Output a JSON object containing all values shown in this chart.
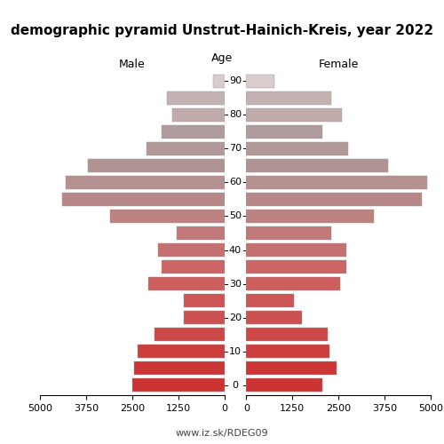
{
  "title": "demographic pyramid Unstrut-Hainich-Kreis, year 2022",
  "watermark": "www.iz.sk/RDEG09",
  "ages": [
    0,
    5,
    10,
    15,
    20,
    25,
    30,
    35,
    40,
    45,
    50,
    55,
    60,
    65,
    70,
    75,
    80,
    85,
    90
  ],
  "male": [
    2500,
    2450,
    2350,
    1900,
    1100,
    1100,
    2050,
    1700,
    1800,
    1300,
    3100,
    4400,
    4300,
    3700,
    2100,
    1700,
    1400,
    1550,
    300
  ],
  "female": [
    2050,
    2450,
    2250,
    2200,
    1500,
    1300,
    2550,
    2700,
    2700,
    2300,
    3450,
    4750,
    4900,
    3850,
    2750,
    2050,
    2600,
    2300,
    750
  ],
  "male_colors": [
    "#cc3333",
    "#cc3636",
    "#cc3e3e",
    "#cc4848",
    "#cc5252",
    "#cc5656",
    "#cc5e5e",
    "#cc6666",
    "#c47070",
    "#c07878",
    "#bc8282",
    "#b88888",
    "#b49090",
    "#b09494",
    "#b09898",
    "#b09c9c",
    "#c0aaaa",
    "#c4b2b2",
    "#d8cccc"
  ],
  "female_colors": [
    "#cc3333",
    "#cc3636",
    "#cc3e3e",
    "#cc4848",
    "#cc5252",
    "#cc5656",
    "#cc5e5e",
    "#cc6666",
    "#c47070",
    "#c07878",
    "#bc8282",
    "#b88888",
    "#b49090",
    "#b09494",
    "#b09898",
    "#b09c9c",
    "#c0aaaa",
    "#c4b2b2",
    "#d8cccc"
  ],
  "xlim": 5000,
  "bar_height": 0.78,
  "bg_color": "#ffffff",
  "title_fontsize": 11,
  "label_fontsize": 9,
  "tick_fontsize": 8,
  "age_label_fontsize": 8,
  "watermark_fontsize": 8,
  "age_label_multiples": [
    0,
    10,
    20,
    30,
    40,
    50,
    60,
    70,
    80,
    90
  ]
}
